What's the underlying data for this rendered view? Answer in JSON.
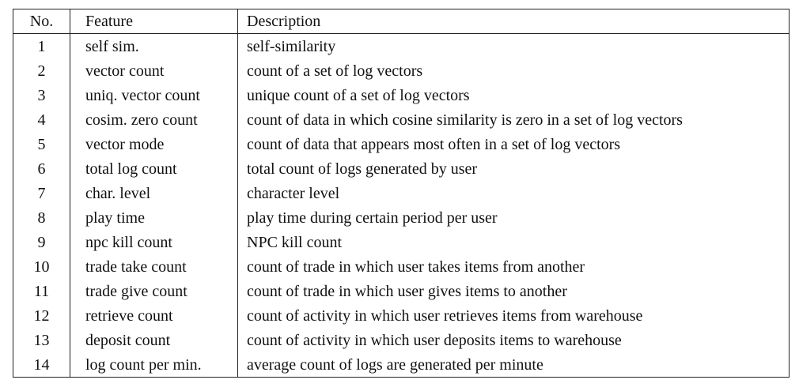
{
  "table": {
    "headers": [
      "No.",
      "Feature",
      "Description"
    ],
    "rows": [
      {
        "no": "1",
        "feature": "self sim.",
        "description": "self-similarity"
      },
      {
        "no": "2",
        "feature": "vector count",
        "description": "count of a set of log vectors"
      },
      {
        "no": "3",
        "feature": "uniq. vector count",
        "description": "unique count of a set of log vectors"
      },
      {
        "no": "4",
        "feature": "cosim. zero count",
        "description": "count of data in which cosine similarity is zero in a set of log vectors"
      },
      {
        "no": "5",
        "feature": "vector mode",
        "description": "count of data that appears most often in a set of log vectors"
      },
      {
        "no": "6",
        "feature": "total log count",
        "description": "total count of logs generated by user"
      },
      {
        "no": "7",
        "feature": "char. level",
        "description": "character level"
      },
      {
        "no": "8",
        "feature": "play time",
        "description": "play time during certain period per user"
      },
      {
        "no": "9",
        "feature": "npc kill count",
        "description": "NPC kill count"
      },
      {
        "no": "10",
        "feature": "trade take count",
        "description": "count of trade in which user takes items from another"
      },
      {
        "no": "11",
        "feature": "trade give count",
        "description": "count of trade in which user gives items to another"
      },
      {
        "no": "12",
        "feature": "retrieve count",
        "description": "count of activity in which user retrieves items from warehouse"
      },
      {
        "no": "13",
        "feature": "deposit count",
        "description": "count of activity in which user deposits items to warehouse"
      },
      {
        "no": "14",
        "feature": "log count per min.",
        "description": "average count of logs are generated per minute"
      }
    ]
  }
}
